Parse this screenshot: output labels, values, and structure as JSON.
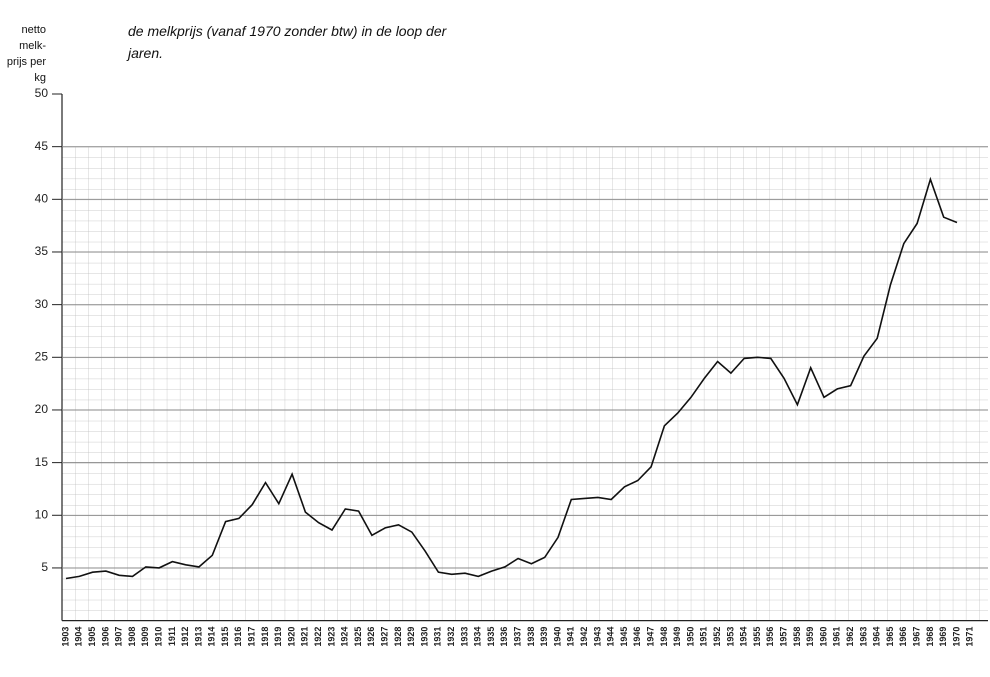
{
  "chart_data": {
    "type": "line",
    "title": "de melkprijs (vanaf 1970 zonder btw) in de loop der jaren.",
    "y_label": "netto melk-prijs per kg",
    "categories": [
      "1903",
      "1904",
      "1905",
      "1906",
      "1907",
      "1908",
      "1909",
      "1910",
      "1911",
      "1912",
      "1913",
      "1914",
      "1915",
      "1916",
      "1917",
      "1918",
      "1919",
      "1920",
      "1921",
      "1922",
      "1923",
      "1924",
      "1925",
      "1926",
      "1927",
      "1928",
      "1929",
      "1930",
      "1931",
      "1932",
      "1933",
      "1934",
      "1935",
      "1936",
      "1937",
      "1938",
      "1939",
      "1940",
      "1941",
      "1942",
      "1943",
      "1944",
      "1945",
      "1946",
      "1947",
      "1948",
      "1949",
      "1950",
      "1951",
      "1952",
      "1953",
      "1954",
      "1955",
      "1956",
      "1957",
      "1958",
      "1959",
      "1960",
      "1961",
      "1962",
      "1963",
      "1964",
      "1965",
      "1966",
      "1967",
      "1968",
      "1969",
      "1970",
      "1971"
    ],
    "series": [
      {
        "name": "melkprijs",
        "color": "#111111",
        "values": [
          4.0,
          4.2,
          4.6,
          4.7,
          4.3,
          4.2,
          5.1,
          5.0,
          5.6,
          5.3,
          5.1,
          6.2,
          9.4,
          9.7,
          11.0,
          13.1,
          11.1,
          13.9,
          10.3,
          9.3,
          8.6,
          10.6,
          10.4,
          8.1,
          8.8,
          9.1,
          8.4,
          6.6,
          4.6,
          4.4,
          4.5,
          4.2,
          4.7,
          5.1,
          5.9,
          5.4,
          6.0,
          7.9,
          11.5,
          11.6,
          11.7,
          11.5,
          12.7,
          13.3,
          14.6,
          18.5,
          19.7,
          21.2,
          23.0,
          24.6,
          23.5,
          24.9,
          25.0,
          24.9,
          23.0,
          20.5,
          24.0,
          21.2,
          22.0,
          22.3,
          25.1,
          26.8,
          31.9,
          35.8,
          37.7,
          41.9,
          38.3,
          37.8,
          null
        ]
      }
    ],
    "ylim": [
      0,
      50
    ],
    "yticks": [
      5,
      10,
      15,
      20,
      25,
      30,
      35,
      40,
      45,
      50
    ],
    "grid": true
  }
}
